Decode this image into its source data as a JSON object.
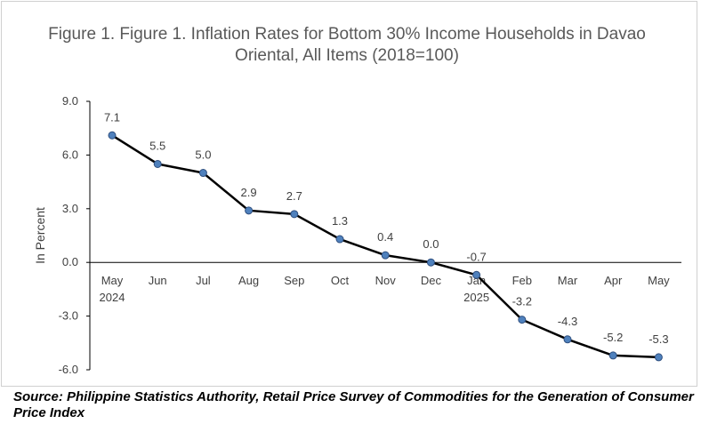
{
  "chart_data": {
    "type": "line",
    "title": "Figure 1. Figure 1. Inflation Rates for Bottom 30% Income Households in Davao Oriental, All Items (2018=100)",
    "ylabel": "In Percent",
    "xlabel": "",
    "ylim": [
      -6,
      9
    ],
    "yticks": [
      "9.0",
      "6.0",
      "3.0",
      "0.0",
      "-3.0",
      "-6.0"
    ],
    "categories": [
      "May\n2024",
      "Jun",
      "Jul",
      "Aug",
      "Sep",
      "Oct",
      "Nov",
      "Dec",
      "Jan\n2025",
      "Feb",
      "Mar",
      "Apr",
      "May"
    ],
    "values": [
      7.1,
      5.5,
      5.0,
      2.9,
      2.7,
      1.3,
      0.4,
      0.0,
      -0.7,
      -3.2,
      -4.3,
      -5.2,
      -5.3
    ],
    "data_labels": [
      "7.1",
      "5.5",
      "5.0",
      "2.9",
      "2.7",
      "1.3",
      "0.4",
      "0.0",
      "-0.7",
      "-3.2",
      "-4.3",
      "-5.2",
      "-5.3"
    ],
    "legend": "none",
    "grid": false,
    "colors": {
      "line": "#000000",
      "marker_fill": "#4f81bd",
      "marker_edge": "#2f4f7f"
    }
  },
  "source": "Source: Philippine Statistics Authority, Retail Price Survey of Commodities for the Generation of Consumer Price Index"
}
